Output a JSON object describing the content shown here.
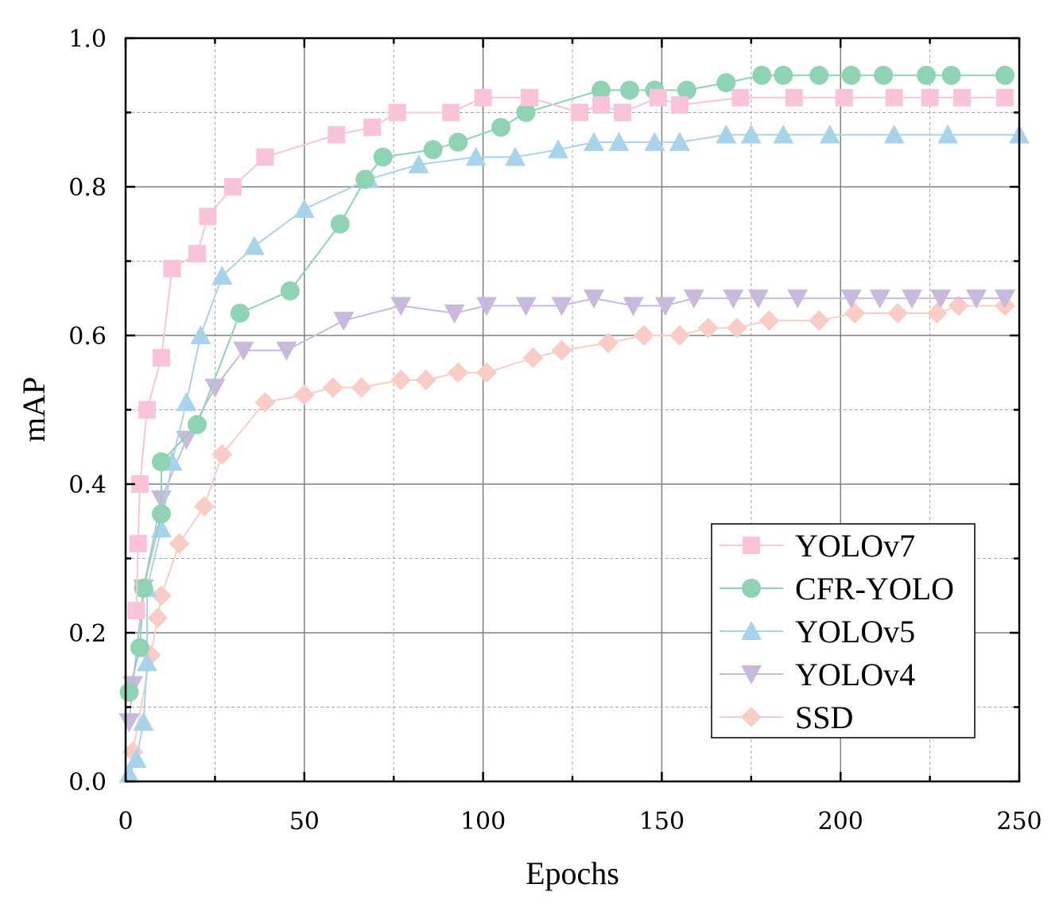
{
  "chart_data": {
    "type": "line",
    "title": "",
    "xlabel": "Epochs",
    "ylabel": "mAP",
    "xlim": [
      0,
      250
    ],
    "ylim": [
      0.0,
      1.0
    ],
    "xticks": [
      "0",
      "50",
      "100",
      "150",
      "200",
      "250"
    ],
    "yticks": [
      "0.0",
      "0.2",
      "0.4",
      "0.6",
      "0.8",
      "1.0"
    ],
    "grid": true,
    "legend_position": "bottom-right",
    "series": [
      {
        "name": "YOLOv7",
        "marker": "square",
        "color": "#F9C3DA",
        "points": [
          [
            3,
            0.23
          ],
          [
            3.5,
            0.32
          ],
          [
            4,
            0.4
          ],
          [
            6,
            0.5
          ],
          [
            10,
            0.57
          ],
          [
            13,
            0.69
          ],
          [
            20,
            0.71
          ],
          [
            23,
            0.76
          ],
          [
            30,
            0.8
          ],
          [
            39,
            0.84
          ],
          [
            59,
            0.87
          ],
          [
            69,
            0.88
          ],
          [
            76,
            0.9
          ],
          [
            91,
            0.9
          ],
          [
            100,
            0.92
          ],
          [
            113,
            0.92
          ],
          [
            127,
            0.9
          ],
          [
            133,
            0.91
          ],
          [
            139,
            0.9
          ],
          [
            149,
            0.92
          ],
          [
            155,
            0.91
          ],
          [
            172,
            0.92
          ],
          [
            187,
            0.92
          ],
          [
            201,
            0.92
          ],
          [
            215,
            0.92
          ],
          [
            225,
            0.92
          ],
          [
            234,
            0.92
          ],
          [
            246,
            0.92
          ]
        ]
      },
      {
        "name": "CFR-YOLO",
        "marker": "circle",
        "color": "#8FD3B4",
        "points": [
          [
            1,
            0.12
          ],
          [
            4,
            0.18
          ],
          [
            5,
            0.26
          ],
          [
            10,
            0.36
          ],
          [
            10,
            0.43
          ],
          [
            20,
            0.48
          ],
          [
            32,
            0.63
          ],
          [
            46,
            0.66
          ],
          [
            60,
            0.75
          ],
          [
            67,
            0.81
          ],
          [
            72,
            0.84
          ],
          [
            86,
            0.85
          ],
          [
            93,
            0.86
          ],
          [
            105,
            0.88
          ],
          [
            112,
            0.9
          ],
          [
            133,
            0.93
          ],
          [
            141,
            0.93
          ],
          [
            148,
            0.93
          ],
          [
            157,
            0.93
          ],
          [
            168,
            0.94
          ],
          [
            178,
            0.95
          ],
          [
            184,
            0.95
          ],
          [
            194,
            0.95
          ],
          [
            203,
            0.95
          ],
          [
            212,
            0.95
          ],
          [
            224,
            0.95
          ],
          [
            231,
            0.95
          ],
          [
            246,
            0.95
          ]
        ]
      },
      {
        "name": "YOLOv5",
        "marker": "triangle-up",
        "color": "#A8D3EA",
        "points": [
          [
            1,
            0.01
          ],
          [
            3,
            0.03
          ],
          [
            5,
            0.08
          ],
          [
            6,
            0.16
          ],
          [
            6,
            0.26
          ],
          [
            10,
            0.34
          ],
          [
            13,
            0.43
          ],
          [
            17,
            0.51
          ],
          [
            21,
            0.6
          ],
          [
            27,
            0.68
          ],
          [
            36,
            0.72
          ],
          [
            50,
            0.77
          ],
          [
            68,
            0.81
          ],
          [
            82,
            0.83
          ],
          [
            98,
            0.84
          ],
          [
            109,
            0.84
          ],
          [
            121,
            0.85
          ],
          [
            131,
            0.86
          ],
          [
            138,
            0.86
          ],
          [
            148,
            0.86
          ],
          [
            155,
            0.86
          ],
          [
            168,
            0.87
          ],
          [
            175,
            0.87
          ],
          [
            184,
            0.87
          ],
          [
            197,
            0.87
          ],
          [
            215,
            0.87
          ],
          [
            230,
            0.87
          ],
          [
            250,
            0.87
          ]
        ]
      },
      {
        "name": "YOLOv4",
        "marker": "triangle-down",
        "color": "#C9B9DC",
        "points": [
          [
            1,
            0.08
          ],
          [
            2,
            0.13
          ],
          [
            5,
            0.26
          ],
          [
            10,
            0.38
          ],
          [
            17,
            0.46
          ],
          [
            25,
            0.53
          ],
          [
            33,
            0.58
          ],
          [
            45,
            0.58
          ],
          [
            61,
            0.62
          ],
          [
            77,
            0.64
          ],
          [
            92,
            0.63
          ],
          [
            101,
            0.64
          ],
          [
            112,
            0.64
          ],
          [
            122,
            0.64
          ],
          [
            131,
            0.65
          ],
          [
            142,
            0.64
          ],
          [
            151,
            0.64
          ],
          [
            159,
            0.65
          ],
          [
            170,
            0.65
          ],
          [
            177,
            0.65
          ],
          [
            188,
            0.65
          ],
          [
            203,
            0.65
          ],
          [
            211,
            0.65
          ],
          [
            220,
            0.65
          ],
          [
            228,
            0.65
          ],
          [
            238,
            0.65
          ],
          [
            246,
            0.65
          ]
        ]
      },
      {
        "name": "SSD",
        "marker": "diamond",
        "color": "#F9CDC6",
        "points": [
          [
            2,
            0.04
          ],
          [
            7,
            0.17
          ],
          [
            9,
            0.22
          ],
          [
            10,
            0.25
          ],
          [
            15,
            0.32
          ],
          [
            22,
            0.37
          ],
          [
            27,
            0.44
          ],
          [
            39,
            0.51
          ],
          [
            50,
            0.52
          ],
          [
            58,
            0.53
          ],
          [
            66,
            0.53
          ],
          [
            77,
            0.54
          ],
          [
            84,
            0.54
          ],
          [
            93,
            0.55
          ],
          [
            101,
            0.55
          ],
          [
            114,
            0.57
          ],
          [
            122,
            0.58
          ],
          [
            135,
            0.59
          ],
          [
            145,
            0.6
          ],
          [
            155,
            0.6
          ],
          [
            163,
            0.61
          ],
          [
            171,
            0.61
          ],
          [
            180,
            0.62
          ],
          [
            194,
            0.62
          ],
          [
            204,
            0.63
          ],
          [
            216,
            0.63
          ],
          [
            227,
            0.63
          ],
          [
            233,
            0.64
          ],
          [
            246,
            0.64
          ]
        ]
      }
    ]
  }
}
